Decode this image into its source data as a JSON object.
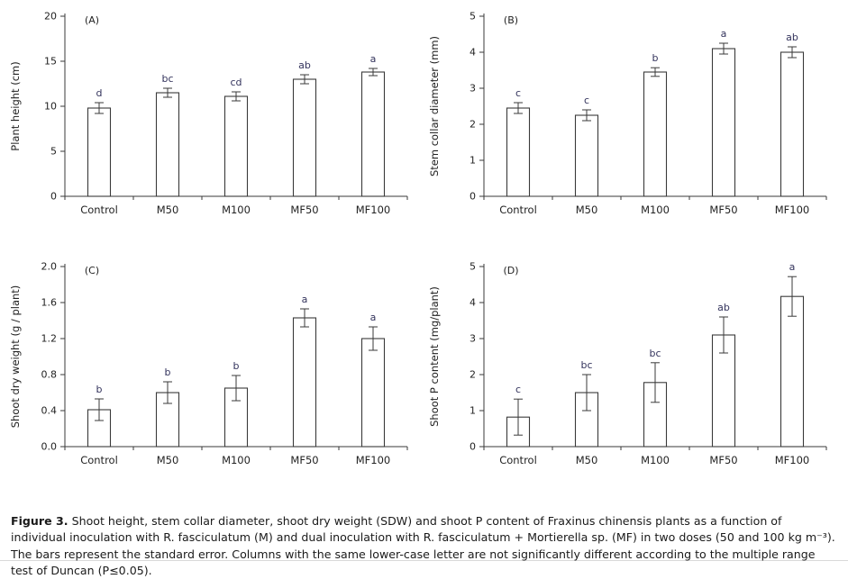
{
  "caption": {
    "label": "Figure 3.",
    "text": " Shoot height, stem collar diameter, shoot dry weight (SDW) and shoot P content of Fraxinus chinensis plants as a function of individual inoculation with R. fasciculatum (M) and dual inoculation with R. fasciculatum + Mortierella sp. (MF) in two doses (50 and 100 kg m⁻³). The bars represent the standard error. Columns with the same lower-case letter are not significantly different according to the multiple range test of Duncan (P≤0.05)."
  },
  "colors": {
    "axis": "#3a3a3a",
    "bar_fill": "#ffffff",
    "bar_stroke": "#3a3a3a",
    "letter": "#33335c",
    "label": "#222222"
  },
  "chart_data": [
    {
      "type": "bar",
      "panel": "(A)",
      "ylabel": "Plant height (cm)",
      "xlabel": "",
      "categories": [
        "Control",
        "M50",
        "M100",
        "MF50",
        "MF100"
      ],
      "values": [
        9.8,
        11.5,
        11.1,
        13.0,
        13.8
      ],
      "errors": [
        0.6,
        0.5,
        0.5,
        0.5,
        0.4
      ],
      "letters": [
        "d",
        "bc",
        "cd",
        "ab",
        "a"
      ],
      "ylim": [
        0,
        20
      ],
      "yticks": [
        0,
        5,
        10,
        15,
        20
      ],
      "ytick_labels": [
        "0",
        "5",
        "10",
        "15",
        "20"
      ],
      "grid": false,
      "legend": "none"
    },
    {
      "type": "bar",
      "panel": "(B)",
      "ylabel": "Stem collar diameter (mm)",
      "xlabel": "",
      "categories": [
        "Control",
        "M50",
        "M100",
        "MF50",
        "MF100"
      ],
      "values": [
        2.45,
        2.25,
        3.45,
        4.1,
        4.0
      ],
      "errors": [
        0.15,
        0.15,
        0.12,
        0.15,
        0.15
      ],
      "letters": [
        "c",
        "c",
        "b",
        "a",
        "ab"
      ],
      "ylim": [
        0,
        5
      ],
      "yticks": [
        0,
        1,
        2,
        3,
        4,
        5
      ],
      "ytick_labels": [
        "0",
        "1",
        "2",
        "3",
        "4",
        "5"
      ],
      "grid": false,
      "legend": "none"
    },
    {
      "type": "bar",
      "panel": "(C)",
      "ylabel": "Shoot dry weight  (g / plant)",
      "xlabel": "",
      "categories": [
        "Control",
        "M50",
        "M100",
        "MF50",
        "MF100"
      ],
      "values": [
        0.41,
        0.6,
        0.65,
        1.43,
        1.2
      ],
      "errors": [
        0.12,
        0.12,
        0.14,
        0.1,
        0.13
      ],
      "letters": [
        "b",
        "b",
        "b",
        "a",
        "a"
      ],
      "ylim": [
        0,
        2.0
      ],
      "yticks": [
        0,
        0.4,
        0.8,
        1.2,
        1.6,
        2.0
      ],
      "ytick_labels": [
        "0.0",
        "0.4",
        "0.8",
        "1.2",
        "1.6",
        "2.0"
      ],
      "grid": false,
      "legend": "none"
    },
    {
      "type": "bar",
      "panel": "(D)",
      "ylabel": "Shoot P content (mg/plant)",
      "xlabel": "",
      "categories": [
        "Control",
        "M50",
        "M100",
        "MF50",
        "MF100"
      ],
      "values": [
        0.82,
        1.5,
        1.78,
        3.1,
        4.17
      ],
      "errors": [
        0.5,
        0.5,
        0.55,
        0.5,
        0.55
      ],
      "letters": [
        "c",
        "bc",
        "bc",
        "ab",
        "a"
      ],
      "ylim": [
        0,
        5
      ],
      "yticks": [
        0,
        1,
        2,
        3,
        4,
        5
      ],
      "ytick_labels": [
        "0",
        "1",
        "2",
        "3",
        "4",
        "5"
      ],
      "grid": false,
      "legend": "none"
    }
  ]
}
